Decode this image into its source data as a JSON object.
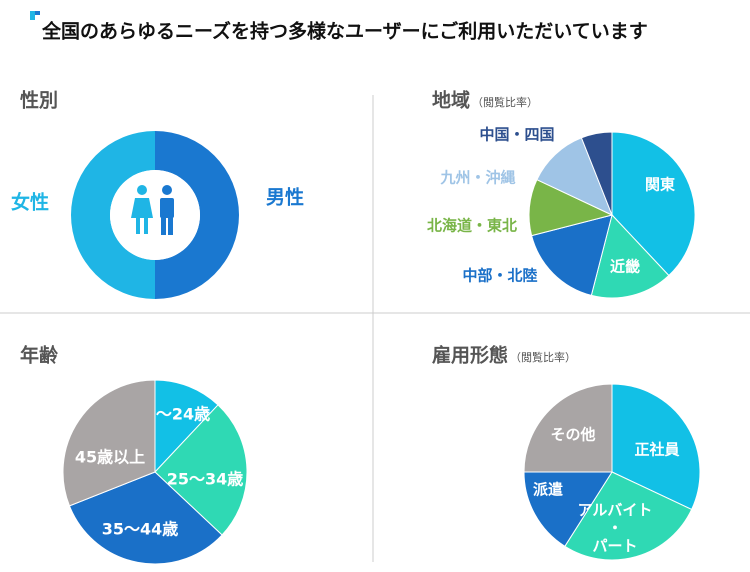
{
  "title": "全国のあらゆるニーズを持つ多様なユーザーにご利用いただいています",
  "chart_data": [
    {
      "type": "donut",
      "title": "性別",
      "categories": [
        "男性",
        "女性"
      ],
      "values": [
        50,
        50
      ],
      "colors": [
        "#1a78d0",
        "#1fb5e5"
      ]
    },
    {
      "type": "pie",
      "title": "地域",
      "subtitle": "（閲覧比率）",
      "categories": [
        "関東",
        "近畿",
        "中部・北陸",
        "北海道・東北",
        "九州・沖縄",
        "中国・四国"
      ],
      "values": [
        38,
        16,
        17,
        11,
        12,
        6
      ],
      "colors": [
        "#12c0e6",
        "#2fd9b4",
        "#1a70c8",
        "#79b548",
        "#9fc4e6",
        "#2d4f8e"
      ]
    },
    {
      "type": "pie",
      "title": "年齢",
      "categories": [
        "～24歳",
        "25～34歳",
        "35～44歳",
        "45歳以上"
      ],
      "values": [
        12,
        25,
        32,
        31
      ],
      "colors": [
        "#12c0e6",
        "#2fd9b4",
        "#1a70c8",
        "#a9a5a5"
      ]
    },
    {
      "type": "pie",
      "title": "雇用形態",
      "subtitle": "（閲覧比率）",
      "categories": [
        "正社員",
        "アルバイト\n・\nパート",
        "派遣",
        "その他"
      ],
      "values": [
        32,
        27,
        16,
        25
      ],
      "colors": [
        "#12c0e6",
        "#2fd9b4",
        "#1a70c8",
        "#a9a5a5"
      ]
    }
  ]
}
